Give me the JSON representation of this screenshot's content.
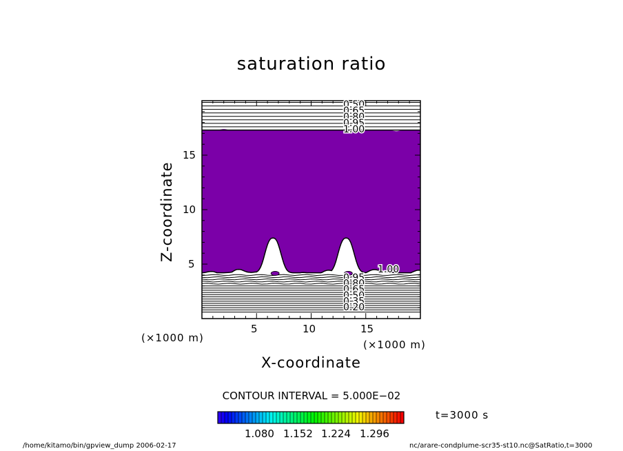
{
  "chart_data": {
    "type": "heatmap",
    "title": "saturation ratio",
    "xlabel": "X-coordinate",
    "ylabel": "Z-coordinate",
    "x_unit": "(×1000 m)",
    "z_unit": "(×1000 m)",
    "xlim": [
      0,
      20
    ],
    "ylim": [
      0,
      20
    ],
    "x_ticks": [
      5,
      10,
      15
    ],
    "y_ticks": [
      5,
      10,
      15
    ],
    "contour_interval": "CONTOUR INTERVAL = 5.000E−02",
    "time_label": "t=3000 s",
    "colorbar_ticks": [
      "1.080",
      "1.152",
      "1.224",
      "1.296"
    ],
    "contour_labels_top": [
      "0.50",
      "0.65",
      "0.80",
      "0.95",
      "1.00"
    ],
    "contour_labels_bottom": [
      "1.00",
      "0.95",
      "0.80",
      "0.65",
      "0.50",
      "0.35",
      "0.20"
    ],
    "supersaturated_region": {
      "z_bottom": 4.2,
      "z_top": 17.3,
      "color": "#7b00a8"
    },
    "plumes_x_center": [
      6.5,
      13.2
    ],
    "plume_top_z": 7.4,
    "footer_left": "/home/kitamo/bin/gpview_dump  2006-02-17",
    "footer_right": "nc/arare-condplume-scr35-st10.nc@SatRatio,t=3000"
  }
}
